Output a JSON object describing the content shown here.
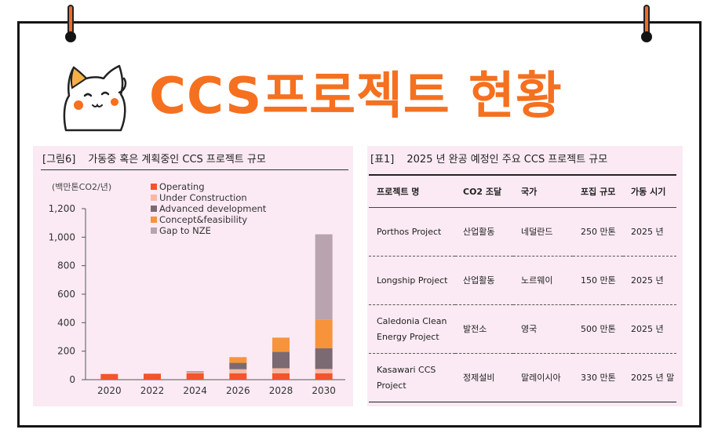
{
  "title": "CCS프로젝트 현황",
  "figure": {
    "caption_num": "[그림6]",
    "caption_text": "가동중 혹은 계획중인 CCS 프로젝트 규모"
  },
  "table": {
    "caption_num": "[표1]",
    "caption_text": "2025 년 완공 예정인 주요 CCS 프로젝트 규모",
    "headers": [
      "프로젝트 명",
      "CO2 조달",
      "국가",
      "포집 규모",
      "가동 시기"
    ],
    "rows": [
      [
        "Porthos Project",
        "산업활동",
        "네덜란드",
        "250 만톤",
        "2025 년"
      ],
      [
        "Longship Project",
        "산업활동",
        "노르웨이",
        "150 만톤",
        "2025 년"
      ],
      [
        "Caledonia Clean Energy Project",
        "발전소",
        "영국",
        "500 만톤",
        "2025 년"
      ],
      [
        "Kasawari CCS Project",
        "정제설비",
        "말레이시아",
        "330 만톤",
        "2025 년 말"
      ]
    ]
  },
  "colors": {
    "accent": "#f5701f",
    "panel_bg": "#fbeaf3",
    "operating": "#f2542d",
    "under_construction": "#f7b8a6",
    "advanced_development": "#7b6a72",
    "concept_feasibility": "#f7933a",
    "gap_to_nze": "#b8a3ae"
  },
  "icons": [
    "mascot-cat-icon",
    "pushpin-icon"
  ],
  "chart_data": {
    "type": "bar",
    "stacked": true,
    "unit_label": "(백만톤CO2/년)",
    "categories": [
      "2020",
      "2022",
      "2024",
      "2026",
      "2028",
      "2030"
    ],
    "series": [
      {
        "name": "Operating",
        "values": [
          40,
          42,
          45,
          45,
          45,
          45
        ]
      },
      {
        "name": "Under Construction",
        "values": [
          0,
          0,
          8,
          28,
          35,
          30
        ]
      },
      {
        "name": "Advanced development",
        "values": [
          0,
          0,
          5,
          45,
          115,
          145
        ]
      },
      {
        "name": "Concept&feasibility",
        "values": [
          0,
          0,
          0,
          40,
          100,
          200
        ]
      },
      {
        "name": "Gap to NZE",
        "values": [
          0,
          0,
          0,
          0,
          0,
          600
        ]
      }
    ],
    "ylim": [
      0,
      1200
    ],
    "yticks": [
      0,
      200,
      400,
      600,
      800,
      1000,
      1200
    ],
    "ytick_labels": [
      "0",
      "200",
      "400",
      "600",
      "800",
      "1,000",
      "1,200"
    ],
    "legend_position": "top-left"
  }
}
